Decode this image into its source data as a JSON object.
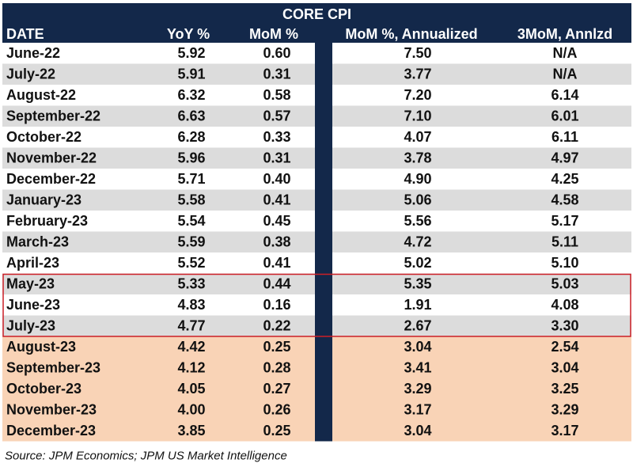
{
  "chart_data": {
    "type": "table",
    "title": "CORE CPI",
    "columns": [
      "DATE",
      "YoY %",
      "MoM %",
      "MoM %, Annualized",
      "3MoM, Annlzd"
    ],
    "rows": [
      [
        "June-22",
        "5.92",
        "0.60",
        "7.50",
        "N/A"
      ],
      [
        "July-22",
        "5.91",
        "0.31",
        "3.77",
        "N/A"
      ],
      [
        "August-22",
        "6.32",
        "0.58",
        "7.20",
        "6.14"
      ],
      [
        "September-22",
        "6.63",
        "0.57",
        "7.10",
        "6.01"
      ],
      [
        "October-22",
        "6.28",
        "0.33",
        "4.07",
        "6.11"
      ],
      [
        "November-22",
        "5.96",
        "0.31",
        "3.78",
        "4.97"
      ],
      [
        "December-22",
        "5.71",
        "0.40",
        "4.90",
        "4.25"
      ],
      [
        "January-23",
        "5.58",
        "0.41",
        "5.06",
        "4.58"
      ],
      [
        "February-23",
        "5.54",
        "0.45",
        "5.56",
        "5.17"
      ],
      [
        "March-23",
        "5.59",
        "0.38",
        "4.72",
        "5.11"
      ],
      [
        "April-23",
        "5.52",
        "0.41",
        "5.02",
        "5.10"
      ],
      [
        "May-23",
        "5.33",
        "0.44",
        "5.35",
        "5.03"
      ],
      [
        "June-23",
        "4.83",
        "0.16",
        "1.91",
        "4.08"
      ],
      [
        "July-23",
        "4.77",
        "0.22",
        "2.67",
        "3.30"
      ],
      [
        "August-23",
        "4.42",
        "0.25",
        "3.04",
        "2.54"
      ],
      [
        "September-23",
        "4.12",
        "0.28",
        "3.41",
        "3.04"
      ],
      [
        "October-23",
        "4.05",
        "0.27",
        "3.29",
        "3.25"
      ],
      [
        "November-23",
        "4.00",
        "0.26",
        "3.17",
        "3.29"
      ],
      [
        "December-23",
        "3.85",
        "0.25",
        "3.04",
        "3.17"
      ]
    ],
    "highlighted_rows": [
      "May-23",
      "June-23",
      "July-23"
    ],
    "projected_rows": [
      "August-23",
      "September-23",
      "October-23",
      "November-23",
      "December-23"
    ],
    "source": "Source: JPM Economics; JPM US Market Intelligence"
  },
  "colors": {
    "header_bg": "#13284a",
    "header_text": "#ffffff",
    "row_white": "#ffffff",
    "row_gray": "#dcdcdc",
    "row_peach": "#f9d3b6",
    "highlight_border": "#cc1f26",
    "text": "#111111"
  }
}
